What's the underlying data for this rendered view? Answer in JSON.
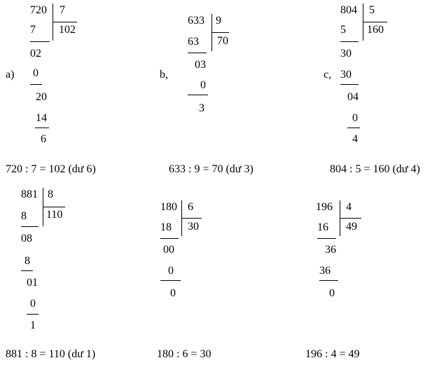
{
  "a": {
    "label": "a)",
    "dividend": "720",
    "divisor": "7",
    "quotient": "102",
    "s1": "7",
    "r1": "02",
    "s2": "0",
    "r2": "20",
    "s3": "14",
    "r3": "6",
    "equation": "720 : 7 = 102 (dư 6)"
  },
  "b": {
    "label": "b,",
    "dividend": "633",
    "divisor": "9",
    "quotient": "70",
    "s1": "63",
    "r1": "03",
    "s2": "0",
    "r2": "3",
    "equation": "633 : 9 = 70 (dư 3)"
  },
  "c": {
    "label": "c,",
    "dividend": "804",
    "divisor": "5",
    "quotient": "160",
    "s1": "5",
    "r1": "30",
    "s2": "30",
    "r2": "04",
    "s3": "0",
    "r3": "4",
    "equation": "804 : 5 = 160 (dư 4)"
  },
  "d": {
    "dividend": "881",
    "divisor": "8",
    "quotient": "110",
    "s1": "8",
    "r1": "08",
    "s2": "8",
    "r2": "01",
    "s3": "0",
    "r3": "1",
    "equation": "881 : 8 = 110 (dư 1)"
  },
  "e": {
    "dividend": "180",
    "divisor": "6",
    "quotient": "30",
    "s1": "18",
    "r1": "00",
    "s2": "0",
    "r2": "0",
    "equation": "180 : 6 = 30"
  },
  "f": {
    "dividend": "196",
    "divisor": "4",
    "quotient": "49",
    "s1": "16",
    "r1": "36",
    "s2": "36",
    "r2": "0",
    "equation": "196 : 4 = 49"
  }
}
